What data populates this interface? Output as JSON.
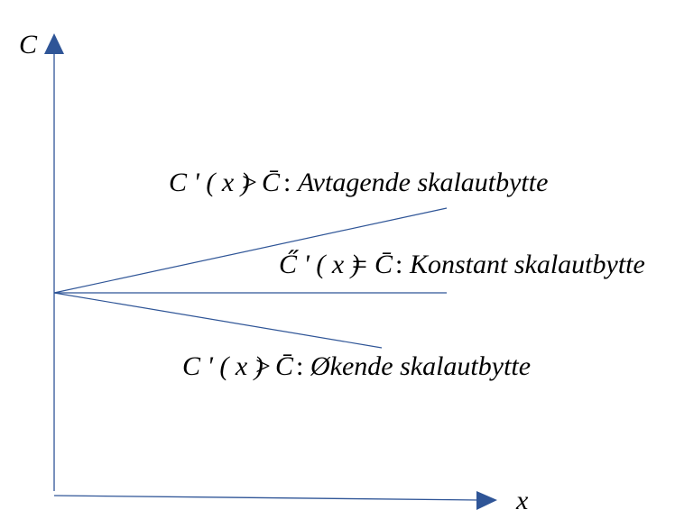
{
  "axes": {
    "y_label": "C",
    "x_label": "x",
    "color": "#2f5597",
    "arrow_color": "#2f5597"
  },
  "annotations": {
    "avtagende": {
      "lhs": "C ' ( x )",
      "op": ">",
      "rhs": "C̄",
      "sep": ":",
      "text": "Avtagende skalautbytte"
    },
    "konstant": {
      "lhs": "C̋ ' ( x )",
      "op": "=",
      "rhs": "C̄",
      "sep": ":",
      "text": "Konstant skalautbytte"
    },
    "okende": {
      "lhs": "C ' ( x )",
      "op": ">",
      "rhs": "C̄",
      "sep": ":",
      "text": "Økende skalautbytte"
    }
  }
}
